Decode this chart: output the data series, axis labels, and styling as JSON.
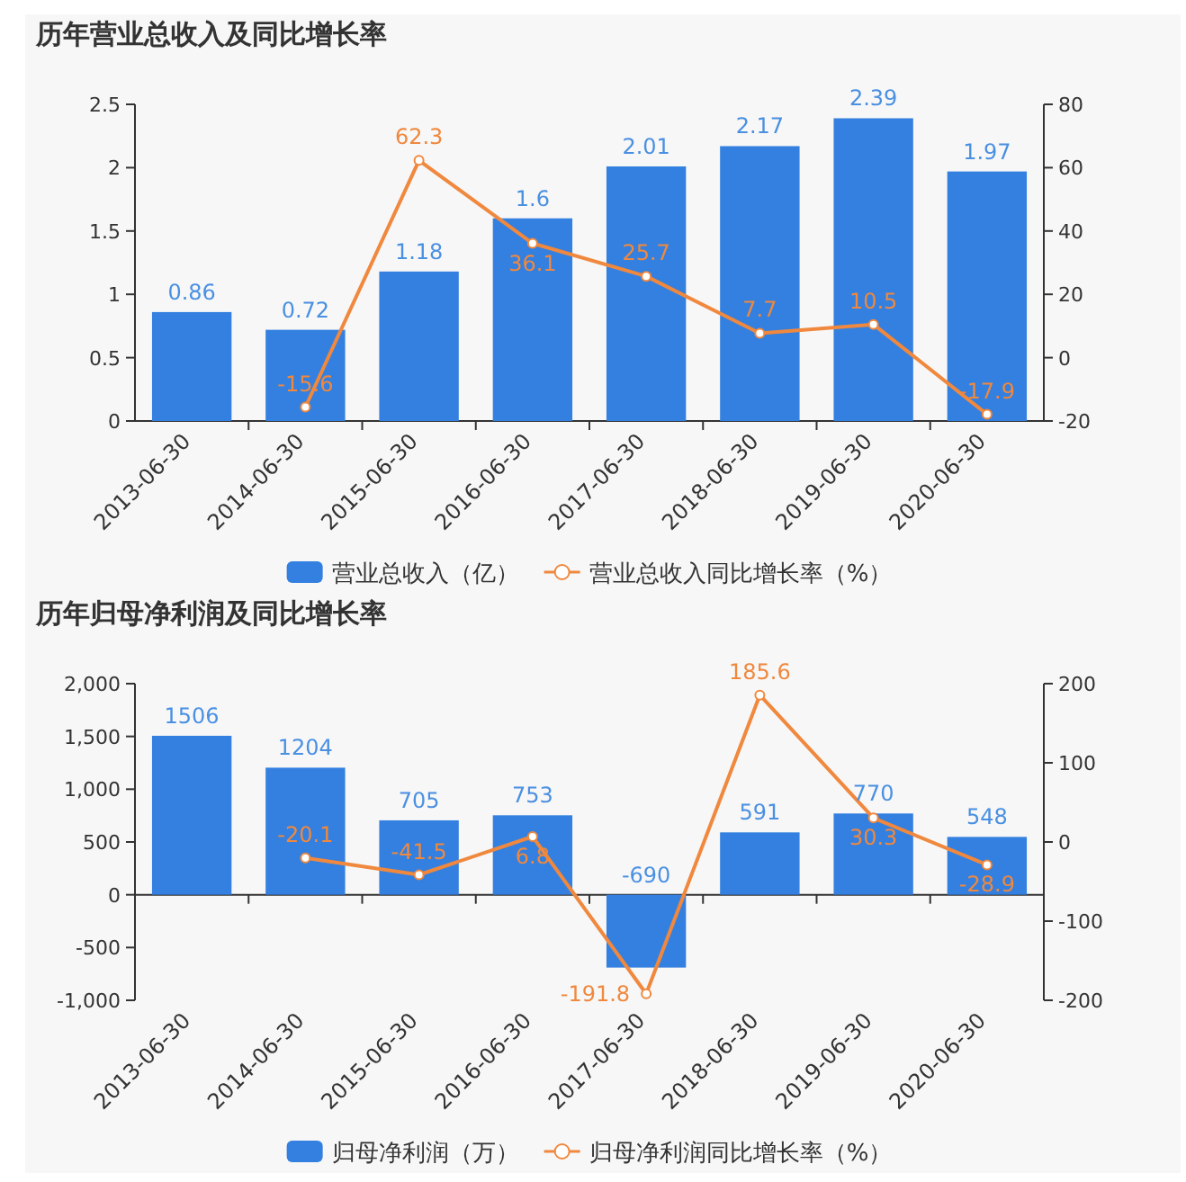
{
  "chart_data": [
    {
      "type": "bar",
      "title": "历年营业总收入及同比增长率",
      "categories": [
        "2013-06-30",
        "2014-06-30",
        "2015-06-30",
        "2016-06-30",
        "2017-06-30",
        "2018-06-30",
        "2019-06-30",
        "2020-06-30"
      ],
      "series": [
        {
          "name": "营业总收入（亿）",
          "color": "#3380e0",
          "values": [
            0.86,
            0.72,
            1.18,
            1.6,
            2.01,
            2.17,
            2.39,
            1.97
          ]
        },
        {
          "name": "营业总收入同比增长率（%）",
          "type": "line",
          "axis": "y2",
          "color": "#f0883e",
          "values": [
            null,
            -15.6,
            62.3,
            36.1,
            25.7,
            7.7,
            10.5,
            -17.9
          ]
        }
      ],
      "ylim": [
        0,
        2.5
      ],
      "yticks": [
        0,
        0.5,
        1,
        1.5,
        2,
        2.5
      ],
      "y2lim": [
        -20,
        80
      ],
      "y2ticks": [
        -20,
        0,
        20,
        40,
        60,
        80
      ],
      "data_labels": true,
      "legend": "bottom",
      "marker": "circle"
    },
    {
      "type": "bar",
      "title": "历年归母净利润及同比增长率",
      "categories": [
        "2013-06-30",
        "2014-06-30",
        "2015-06-30",
        "2016-06-30",
        "2017-06-30",
        "2018-06-30",
        "2019-06-30",
        "2020-06-30"
      ],
      "series": [
        {
          "name": "归母净利润（万）",
          "color": "#3380e0",
          "values": [
            1506,
            1204,
            705,
            753,
            -690,
            591,
            770,
            548
          ]
        },
        {
          "name": "归母净利润同比增长率（%）",
          "type": "line",
          "axis": "y2",
          "color": "#f0883e",
          "values": [
            null,
            -20.1,
            -41.5,
            6.8,
            -191.8,
            185.6,
            30.3,
            -28.9
          ]
        }
      ],
      "ylim": [
        -1000,
        2000
      ],
      "yticks": [
        {
          "value": -1000,
          "label": "-1,000"
        },
        -500,
        0,
        500,
        {
          "value": 1000,
          "label": "1,000"
        },
        {
          "value": 1500,
          "label": "1,500"
        },
        {
          "value": 2000,
          "label": "2,000"
        }
      ],
      "y2lim": [
        -200,
        200
      ],
      "y2ticks": [
        -200,
        -100,
        0,
        100,
        200
      ],
      "data_labels": true,
      "legend": "bottom",
      "marker": "circle"
    }
  ]
}
